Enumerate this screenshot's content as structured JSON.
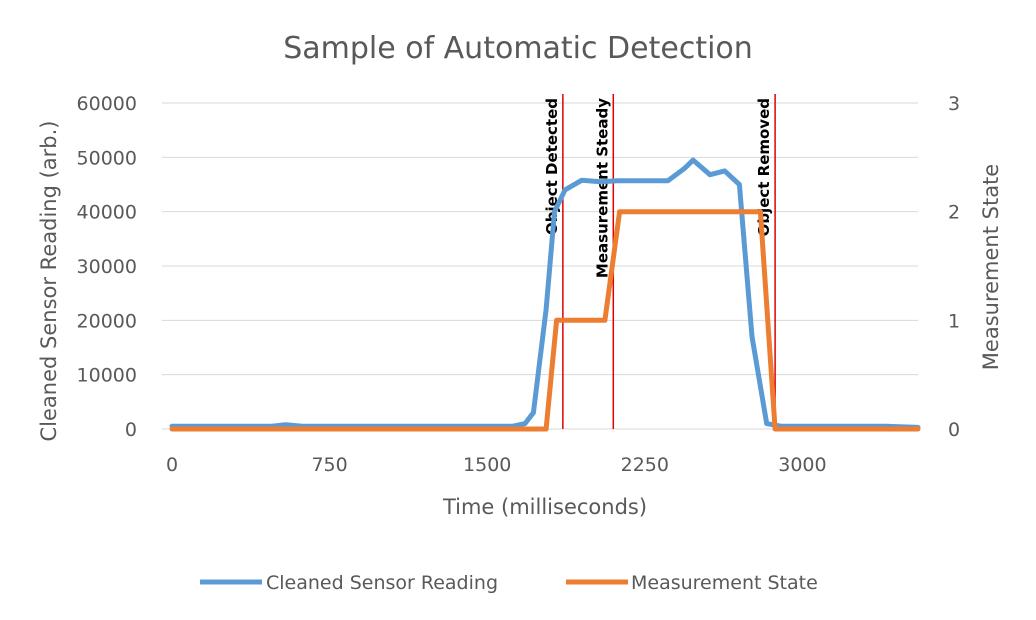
{
  "chart_data": {
    "type": "line",
    "title": "Sample of Automatic Detection",
    "xlabel": "Time (milliseconds)",
    "ylabel": "Cleaned Sensor Reading (arb.)",
    "y2label": "Measurement State",
    "xlim": [
      0,
      3550
    ],
    "ylim": [
      0,
      60000
    ],
    "y2lim": [
      0,
      3
    ],
    "x_ticks": [
      0,
      750,
      1500,
      2250,
      3000
    ],
    "y_ticks": [
      0,
      10000,
      20000,
      30000,
      40000,
      50000,
      60000
    ],
    "y2_ticks": [
      0,
      1,
      2,
      3
    ],
    "grid": true,
    "legend_position": "bottom",
    "series": [
      {
        "name": "Cleaned Sensor Reading",
        "axis": "left",
        "color": "#5B9BD5",
        "x": [
          0,
          470,
          540,
          620,
          800,
          1000,
          1200,
          1400,
          1600,
          1620,
          1680,
          1720,
          1780,
          1820,
          1870,
          1950,
          2040,
          2120,
          2200,
          2280,
          2360,
          2440,
          2480,
          2560,
          2630,
          2700,
          2760,
          2830,
          2900,
          3000,
          3200,
          3400,
          3550
        ],
        "y": [
          500,
          500,
          800,
          500,
          500,
          500,
          500,
          500,
          500,
          500,
          1000,
          3000,
          22000,
          40000,
          44000,
          45800,
          45500,
          45700,
          45700,
          45700,
          45700,
          48000,
          49500,
          46800,
          47500,
          45000,
          17000,
          1000,
          500,
          500,
          500,
          500,
          300
        ]
      },
      {
        "name": "Measurement State",
        "axis": "right",
        "color": "#ED7D31",
        "x": [
          0,
          1780,
          1830,
          2060,
          2130,
          2800,
          2870,
          3550
        ],
        "y": [
          0,
          0,
          1,
          1,
          2,
          2,
          0,
          0
        ]
      }
    ],
    "annotations": [
      {
        "label": "Object Detected",
        "x": 1860
      },
      {
        "label": "Measurement Steady",
        "x": 2100
      },
      {
        "label": "Object Removed",
        "x": 2870
      }
    ]
  }
}
